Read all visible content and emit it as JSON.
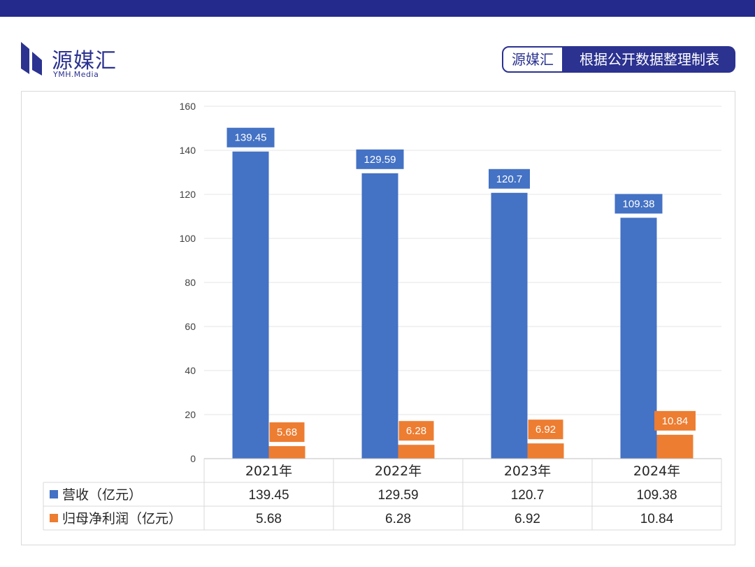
{
  "header": {
    "logo_text": "源媒汇",
    "logo_sub": "YMH.Media",
    "badge_left": "源媒汇",
    "badge_right": "根据公开数据整理制表"
  },
  "colors": {
    "brand": "#2b3290",
    "top_bar": "#232a8c",
    "revenue": "#4472c4",
    "profit": "#ed7d31"
  },
  "chart_data": {
    "type": "bar",
    "categories": [
      "2021年",
      "2022年",
      "2023年",
      "2024年"
    ],
    "series": [
      {
        "name": "营收（亿元）",
        "values": [
          139.45,
          129.59,
          120.7,
          109.38
        ],
        "value_labels": [
          "139.45",
          "129.59",
          "120.7",
          "109.38"
        ]
      },
      {
        "name": "归母净利润（亿元）",
        "values": [
          5.68,
          6.28,
          6.92,
          10.84
        ],
        "value_labels": [
          "5.68",
          "6.28",
          "6.92",
          "10.84"
        ]
      }
    ],
    "ylim": [
      0,
      160
    ],
    "yticks": [
      0,
      20,
      40,
      60,
      80,
      100,
      120,
      140,
      160
    ],
    "grid": true,
    "legend": "data-table"
  }
}
